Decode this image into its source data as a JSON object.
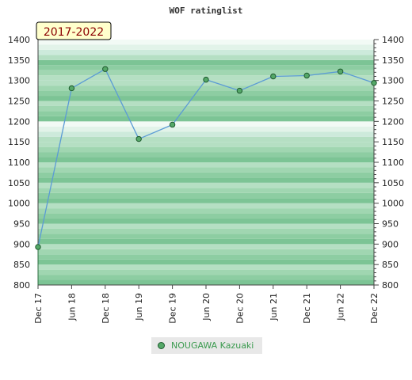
{
  "chart_data": {
    "type": "line",
    "title": "WOF ratinglist",
    "badge": "2017-2022",
    "categories": [
      "Dec 17",
      "Jun 18",
      "Dec 18",
      "Jun 19",
      "Dec 19",
      "Jun 20",
      "Dec 20",
      "Jun 21",
      "Dec 21",
      "Jun 22",
      "Dec 22"
    ],
    "series": [
      {
        "name": "NOUGAWA Kazuaki",
        "values": [
          893,
          1281,
          1328,
          1157,
          1192,
          1302,
          1275,
          1310,
          1312,
          1322,
          1294
        ]
      }
    ],
    "ylim": [
      800,
      1400
    ],
    "yticks": [
      800,
      850,
      900,
      950,
      1000,
      1050,
      1100,
      1150,
      1200,
      1250,
      1300,
      1350,
      1400
    ],
    "grid": true,
    "legend_position": "bottom-center",
    "colors": {
      "line": "#5b9bd5",
      "marker": "#55a868",
      "marker_edge": "#1e5a2e",
      "legend_text": "#3a9a4e"
    }
  }
}
